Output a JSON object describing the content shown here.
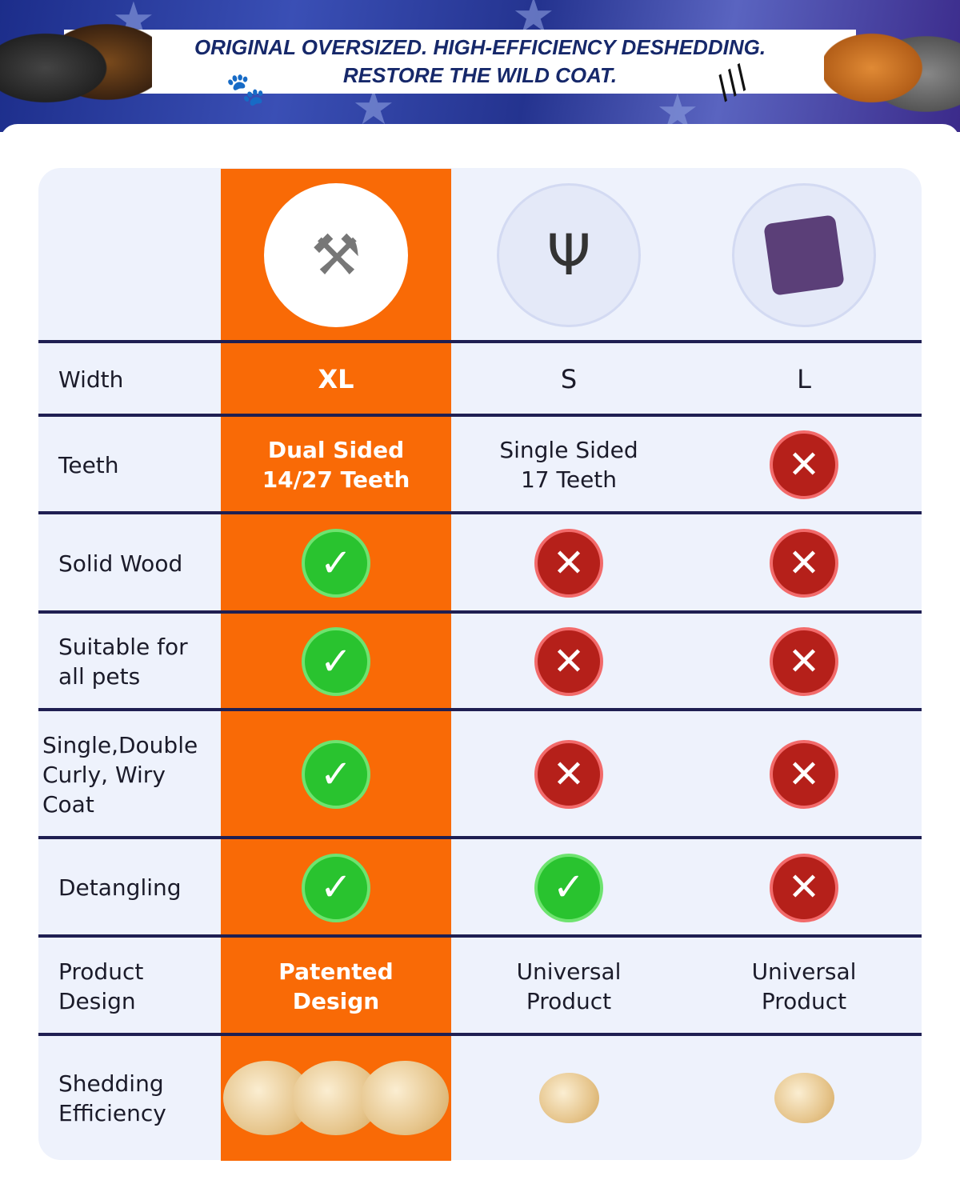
{
  "banner": {
    "line1": "ORIGINAL OVERSIZED. HIGH-EFFICIENCY DESHEDDING.",
    "line2": "RESTORE THE WILD COAT."
  },
  "columns": [
    {
      "product": "oversized deshedding rake with wood handle",
      "highlight_color": "#f96a06"
    },
    {
      "product": "single sided deshedding rake"
    },
    {
      "product": "slicker brush"
    }
  ],
  "rows": [
    {
      "label": "Width",
      "values": [
        "XL",
        "S",
        "L"
      ]
    },
    {
      "label": "Teeth",
      "values": [
        "Dual Sided\n14/27 Teeth",
        "Single Sided\n17 Teeth",
        "no"
      ]
    },
    {
      "label": "Solid Wood",
      "values": [
        "yes",
        "no",
        "no"
      ]
    },
    {
      "label": "Suitable for\nall pets",
      "values": [
        "yes",
        "no",
        "no"
      ]
    },
    {
      "label": "Single,Double\nCurly, Wiry\nCoat",
      "values": [
        "yes",
        "no",
        "no"
      ]
    },
    {
      "label": "Detangling",
      "values": [
        "yes",
        "yes",
        "no"
      ]
    },
    {
      "label": "Product\nDesign",
      "values": [
        "Patented\nDesign",
        "Universal\nProduct",
        "Universal\nProduct"
      ]
    },
    {
      "label": "Shedding\nEfficiency",
      "values": [
        "3 fur balls",
        "1 fur ball",
        "1 fur ball"
      ]
    }
  ],
  "colors": {
    "yes": "#29c32f",
    "no": "#b5201a",
    "divider": "#1f1f52",
    "table_bg": "#eef2fc"
  }
}
